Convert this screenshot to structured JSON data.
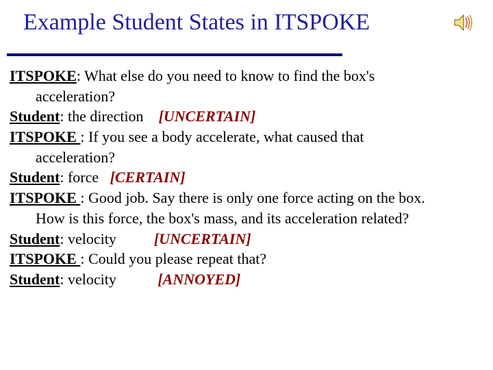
{
  "title": "Example Student States in ITSPOKE",
  "colors": {
    "title": "#1f1f9e",
    "underline": "#000080",
    "tag": "#8b0000",
    "text": "#000000",
    "background": "#ffffff"
  },
  "font": {
    "family": "Times New Roman",
    "title_size": 34,
    "body_size": 22
  },
  "sound_icon": {
    "speaker_fill": "#f5e28a",
    "speaker_stroke": "#6b5b00",
    "wave_colors": [
      "#e04040",
      "#d07030",
      "#c0a020"
    ]
  },
  "lines": [
    {
      "speaker": "ITSPOKE",
      "sep": ": ",
      "text": "What else do you need to know to find the box's"
    },
    {
      "indent": true,
      "text": "acceleration?"
    },
    {
      "speaker": "Student",
      "sep": ": ",
      "text": "the direction",
      "gap": "    ",
      "tag": "[UNCERTAIN]"
    },
    {
      "speaker": "ITSPOKE ",
      "sep": ": ",
      "text": "If you see a body accelerate, what caused that"
    },
    {
      "indent": true,
      "text": "acceleration?"
    },
    {
      "speaker": "Student",
      "sep": ": ",
      "text": "force",
      "gap": "   ",
      "tag": "[CERTAIN]"
    },
    {
      "speaker": "ITSPOKE ",
      "sep": ": ",
      "text": "Good job.  Say there is only one force acting on the box."
    },
    {
      "indent": true,
      "text": "How is this force, the box's mass, and its acceleration related?"
    },
    {
      "speaker": "Student",
      "sep": ": ",
      "text": "velocity",
      "gap": "          ",
      "tag": "[UNCERTAIN]"
    },
    {
      "speaker": "ITSPOKE ",
      "sep": ": ",
      "text": "Could you please repeat that?"
    },
    {
      "speaker": "Student",
      "sep": ": ",
      "text": "velocity",
      "gap": "           ",
      "tag": "[ANNOYED]"
    }
  ]
}
